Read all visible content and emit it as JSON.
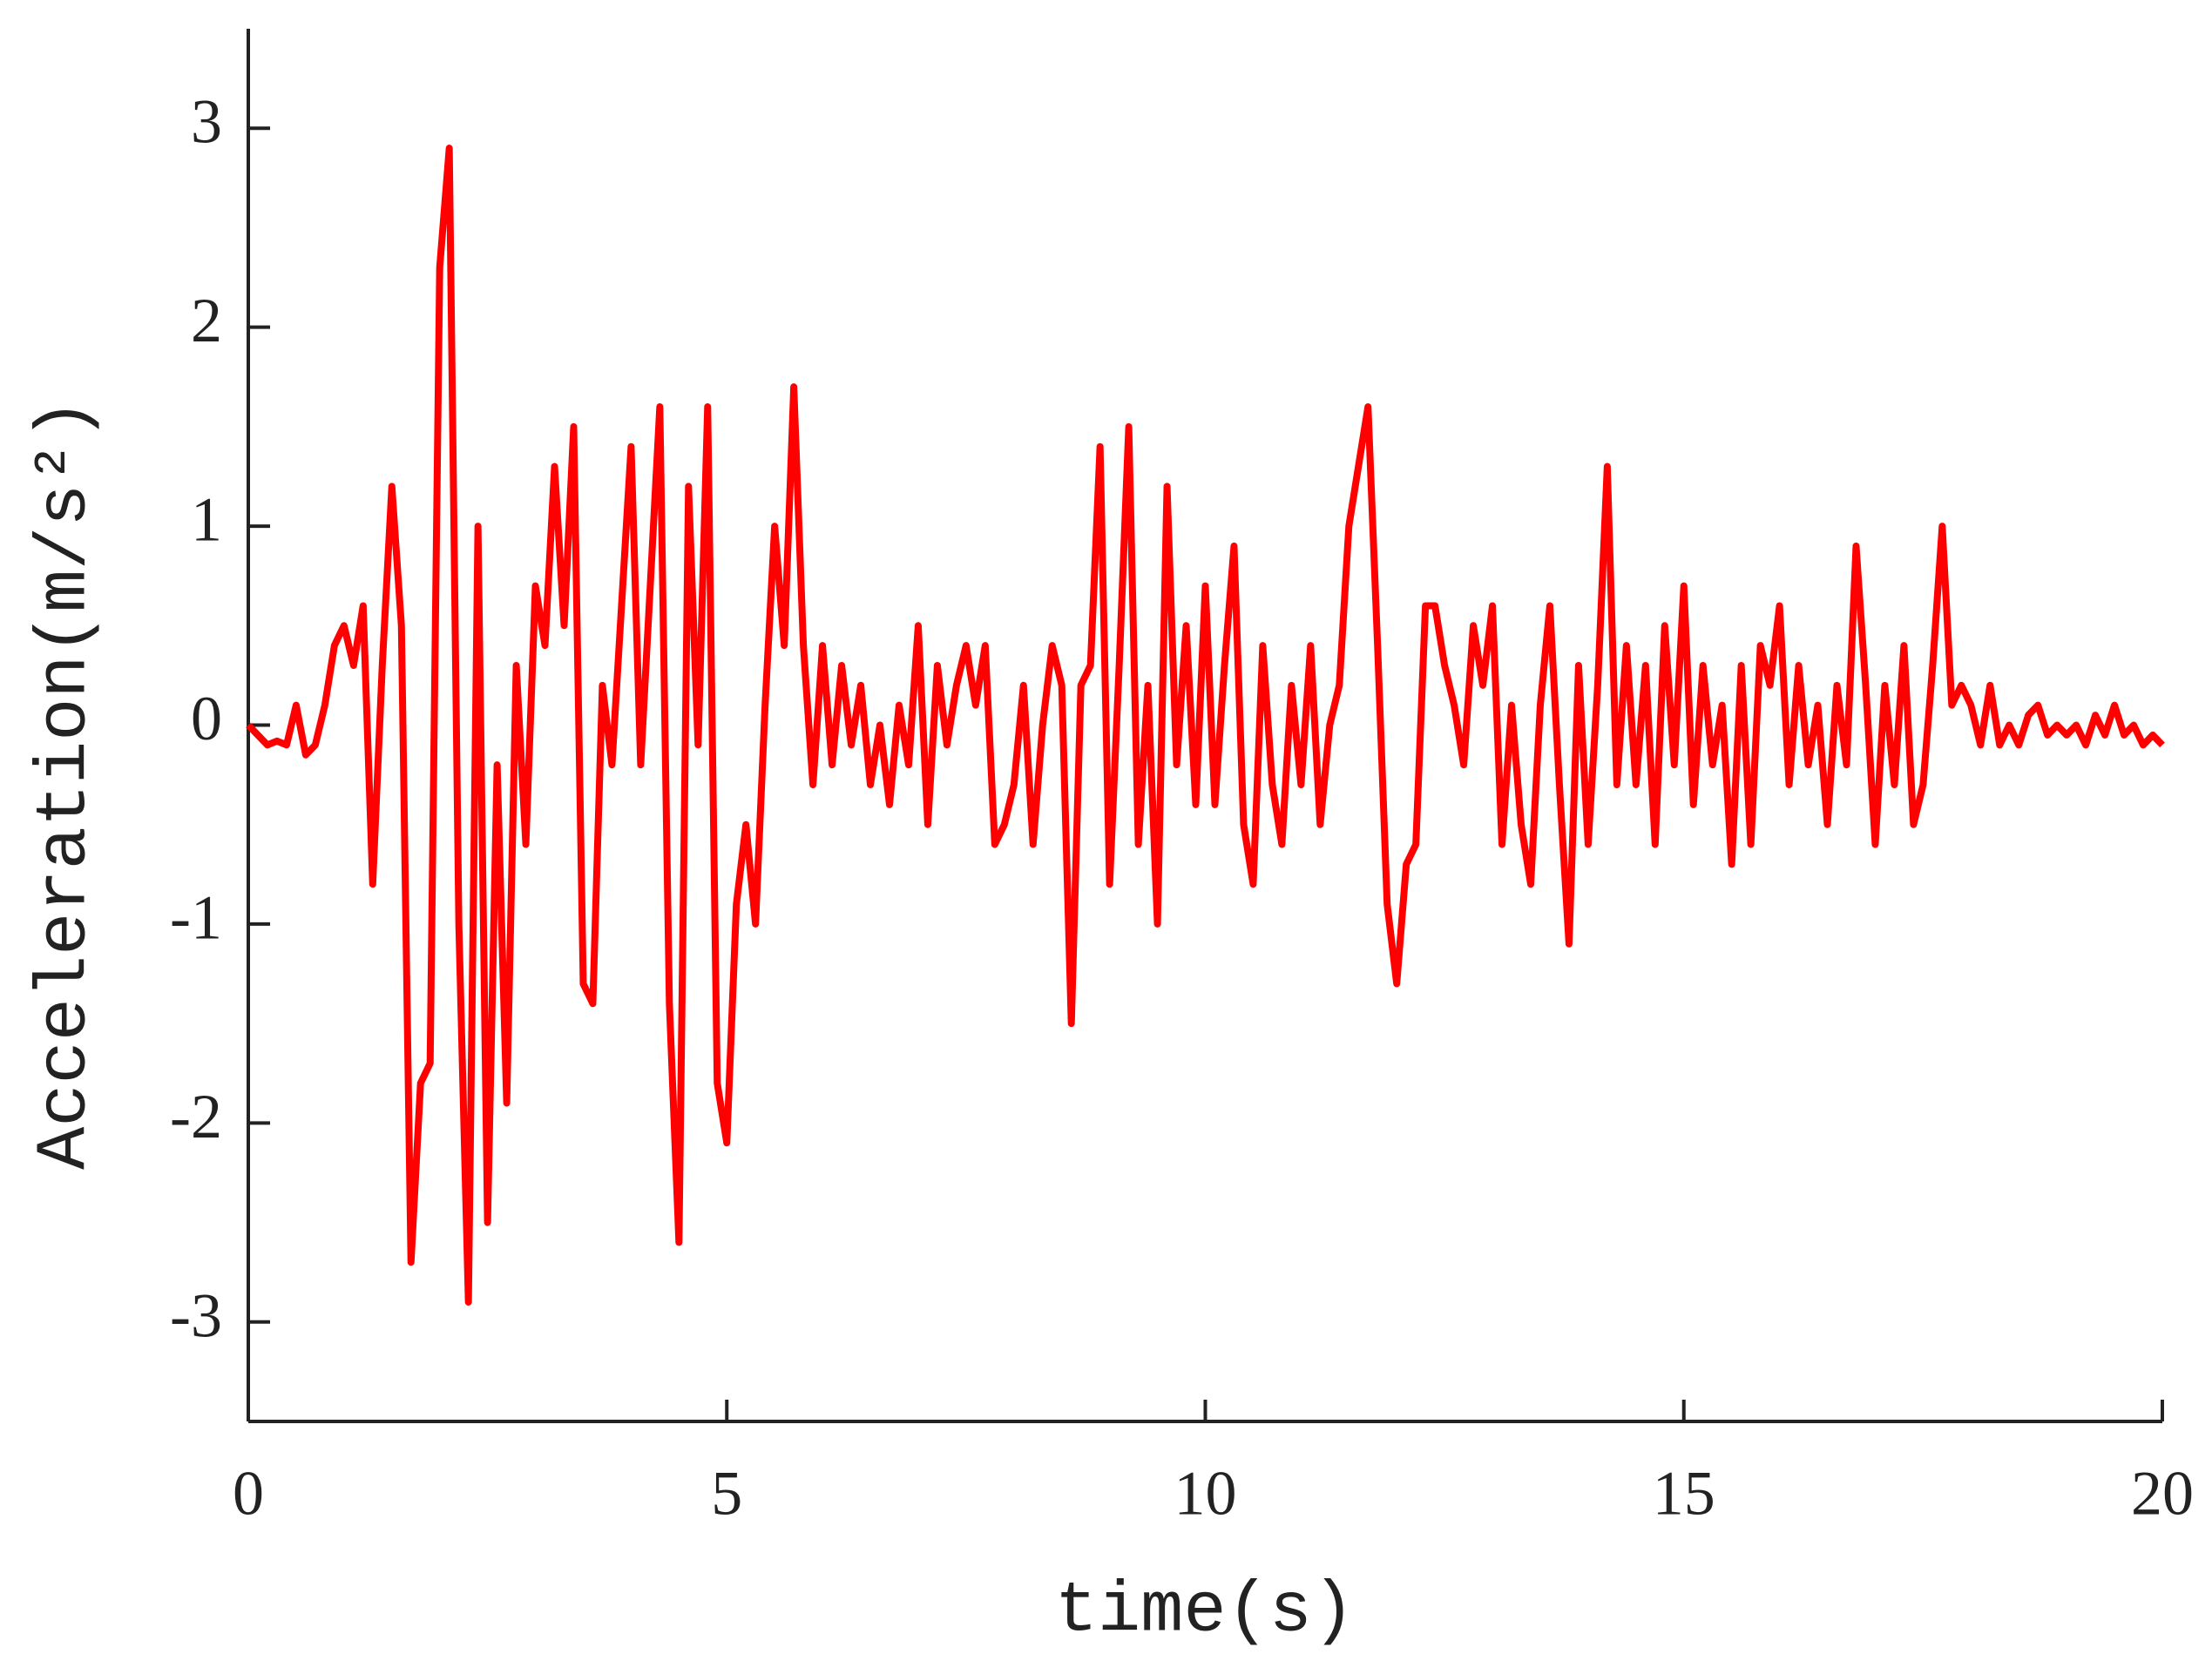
{
  "chart_data": {
    "type": "line",
    "xlabel": "time(s)",
    "ylabel": "Acceleration(m/s²)",
    "x": [
      0,
      0.1,
      0.2,
      0.3,
      0.4,
      0.5,
      0.6,
      0.7,
      0.8,
      0.9,
      1,
      1.1,
      1.2,
      1.3,
      1.4,
      1.5,
      1.6,
      1.7,
      1.8,
      1.9,
      2,
      2.1,
      2.2,
      2.3,
      2.4,
      2.5,
      2.6,
      2.7,
      2.8,
      2.9,
      3,
      3.1,
      3.2,
      3.3,
      3.4,
      3.5,
      3.6,
      3.7,
      3.8,
      3.9,
      4,
      4.1,
      4.2,
      4.3,
      4.4,
      4.5,
      4.6,
      4.7,
      4.8,
      4.9,
      5,
      5.1,
      5.2,
      5.3,
      5.4,
      5.5,
      5.6,
      5.7,
      5.8,
      5.9,
      6,
      6.1,
      6.2,
      6.3,
      6.4,
      6.5,
      6.6,
      6.7,
      6.8,
      6.9,
      7,
      7.1,
      7.2,
      7.3,
      7.4,
      7.5,
      7.6,
      7.7,
      7.8,
      7.9,
      8,
      8.1,
      8.2,
      8.3,
      8.4,
      8.5,
      8.6,
      8.7,
      8.8,
      8.9,
      9,
      9.1,
      9.2,
      9.3,
      9.4,
      9.5,
      9.6,
      9.7,
      9.8,
      9.9,
      10,
      10.1,
      10.2,
      10.3,
      10.4,
      10.5,
      10.6,
      10.7,
      10.8,
      10.9,
      11,
      11.1,
      11.2,
      11.3,
      11.4,
      11.5,
      11.6,
      11.7,
      11.8,
      11.9,
      12,
      12.1,
      12.2,
      12.3,
      12.4,
      12.5,
      12.6,
      12.7,
      12.8,
      12.9,
      13,
      13.1,
      13.2,
      13.3,
      13.4,
      13.5,
      13.6,
      13.7,
      13.8,
      13.9,
      14,
      14.1,
      14.2,
      14.3,
      14.4,
      14.5,
      14.6,
      14.7,
      14.8,
      14.9,
      15,
      15.1,
      15.2,
      15.3,
      15.4,
      15.5,
      15.6,
      15.7,
      15.8,
      15.9,
      16,
      16.1,
      16.2,
      16.3,
      16.4,
      16.5,
      16.6,
      16.7,
      16.8,
      16.9,
      17,
      17.1,
      17.2,
      17.3,
      17.4,
      17.5,
      17.6,
      17.7,
      17.8,
      17.9,
      18,
      18.1,
      18.2,
      18.3,
      18.4,
      18.5,
      18.6,
      18.7,
      18.8,
      18.9,
      19,
      19.1,
      19.2,
      19.3,
      19.4,
      19.5,
      19.6,
      19.7,
      19.8,
      19.9,
      20
    ],
    "series": [
      {
        "name": "acceleration",
        "color": "#ff0000",
        "values": [
          0,
          -0.05,
          -0.1,
          -0.08,
          -0.1,
          0.1,
          -0.15,
          -0.1,
          0.1,
          0.4,
          0.5,
          0.3,
          0.6,
          -0.8,
          0.3,
          1.2,
          0.5,
          -2.7,
          -1.8,
          -1.7,
          2.3,
          2.9,
          -1.0,
          -2.9,
          1.0,
          -2.5,
          -0.2,
          -1.9,
          0.3,
          -0.6,
          0.7,
          0.4,
          1.3,
          0.5,
          1.5,
          -1.3,
          -1.4,
          0.2,
          -0.2,
          0.6,
          1.4,
          -0.2,
          0.7,
          1.6,
          -1.4,
          -2.6,
          1.2,
          -0.1,
          1.6,
          -1.8,
          -2.1,
          -0.9,
          -0.5,
          -1.0,
          0.1,
          1.0,
          0.4,
          1.7,
          0.4,
          -0.3,
          0.4,
          -0.2,
          0.3,
          -0.1,
          0.2,
          -0.3,
          0,
          -0.4,
          0.1,
          -0.2,
          0.5,
          -0.5,
          0.3,
          -0.1,
          0.2,
          0.4,
          0.1,
          0.4,
          -0.6,
          -0.5,
          -0.3,
          0.2,
          -0.6,
          0,
          0.4,
          0.2,
          -1.5,
          0.2,
          0.3,
          1.4,
          -0.8,
          0.3,
          1.5,
          -0.6,
          0.2,
          -1.0,
          1.2,
          -0.2,
          0.5,
          -0.4,
          0.7,
          -0.4,
          0.3,
          0.9,
          -0.5,
          -0.8,
          0.4,
          -0.3,
          -0.6,
          0.2,
          -0.3,
          0.4,
          -0.5,
          0,
          0.2,
          1.0,
          1.3,
          1.6,
          0.4,
          -0.9,
          -1.3,
          -0.7,
          -0.6,
          0.6,
          0.6,
          0.3,
          0.1,
          -0.2,
          0.5,
          0.2,
          0.6,
          -0.6,
          0.1,
          -0.5,
          -0.8,
          0.1,
          0.6,
          -0.3,
          -1.1,
          0.3,
          -0.6,
          0.2,
          1.3,
          -0.3,
          0.4,
          -0.3,
          0.3,
          -0.6,
          0.5,
          -0.2,
          0.7,
          -0.4,
          0.3,
          -0.2,
          0.1,
          -0.7,
          0.3,
          -0.6,
          0.4,
          0.2,
          0.6,
          -0.3,
          0.3,
          -0.2,
          0.1,
          -0.5,
          0.2,
          -0.2,
          0.9,
          0.2,
          -0.6,
          0.2,
          -0.3,
          0.4,
          -0.5,
          -0.3,
          0.3,
          1.0,
          0.1,
          0.2,
          0.1,
          -0.1,
          0.2,
          -0.1,
          0,
          -0.1,
          0.05,
          0.1,
          -0.05,
          0,
          -0.05,
          0,
          -0.1,
          0.05,
          -0.05,
          0.1,
          -0.05,
          0,
          -0.1,
          -0.05,
          -0.1
        ]
      }
    ],
    "xlim": [
      0,
      20
    ],
    "xticks": [
      0,
      5,
      10,
      15,
      20
    ],
    "ylim": [
      -3.5,
      3.5
    ],
    "yticks": [
      -3,
      -2,
      -1,
      0,
      1,
      2,
      3
    ],
    "grid": false
  }
}
